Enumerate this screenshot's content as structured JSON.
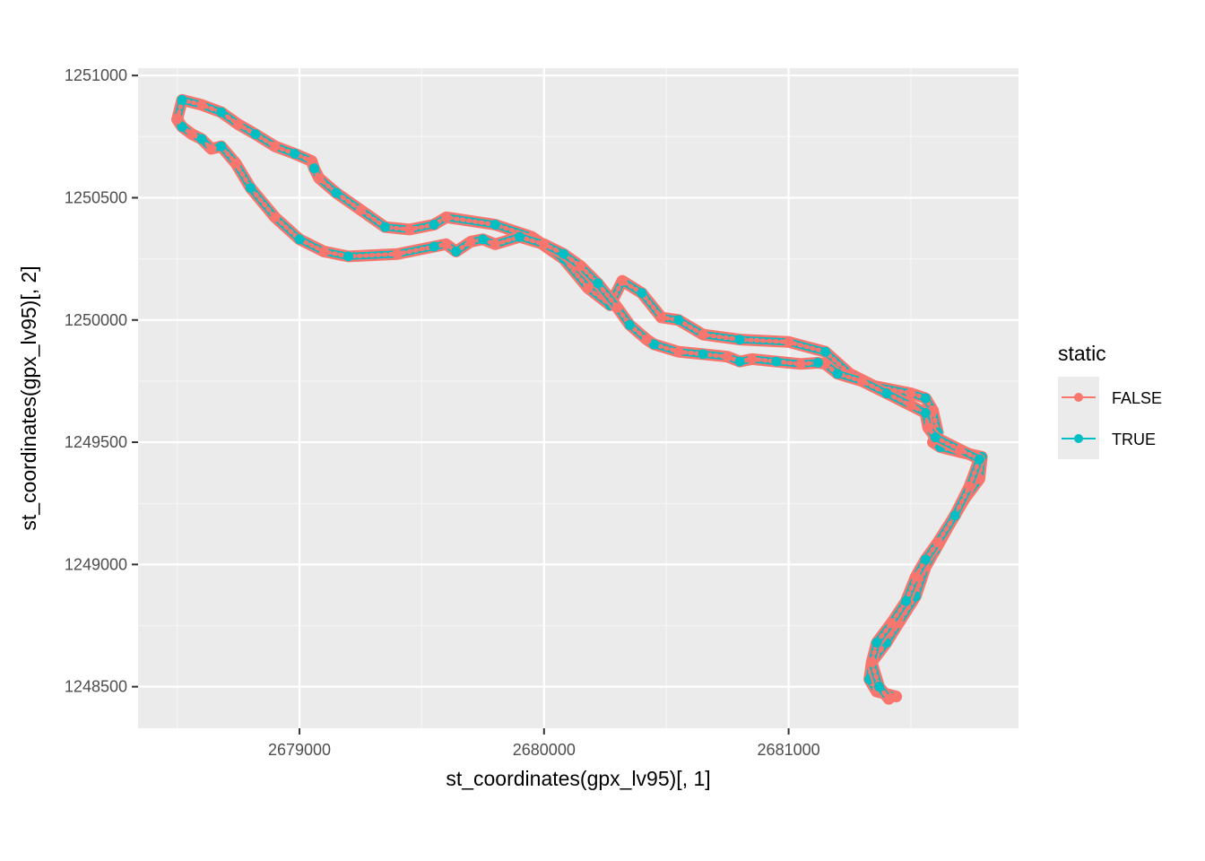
{
  "chart_data": {
    "type": "line",
    "xlabel": "st_coordinates(gpx_lv95)[, 1]",
    "ylabel": "st_coordinates(gpx_lv95)[, 2]",
    "xlim": [
      2678340,
      2681940
    ],
    "ylim": [
      1248330,
      1251030
    ],
    "x_ticks": [
      2679000,
      2680000,
      2681000
    ],
    "x_tick_labels": [
      "2679000",
      "2680000",
      "2681000"
    ],
    "y_ticks": [
      1248500,
      1249000,
      1249500,
      1250000,
      1250500,
      1251000
    ],
    "y_tick_labels": [
      "1248500",
      "1249000",
      "1249500",
      "1250000",
      "1250500",
      "1251000"
    ],
    "grid": true,
    "legend": {
      "title": "static",
      "position": "right"
    },
    "series": [
      {
        "name": "FALSE",
        "color": "#F8766D"
      },
      {
        "name": "TRUE",
        "color": "#00BFC4"
      }
    ],
    "route": {
      "x": [
        2678500,
        2678520,
        2678600,
        2678680,
        2678750,
        2678820,
        2678900,
        2678980,
        2679050,
        2679060,
        2679080,
        2679150,
        2679250,
        2679350,
        2679450,
        2679550,
        2679600,
        2679800,
        2679950,
        2680080,
        2680180,
        2680270,
        2680320,
        2680400,
        2680480,
        2680550,
        2680650,
        2680800,
        2681000,
        2681150,
        2681250,
        2681350,
        2681500,
        2681560,
        2681590,
        2681610,
        2681590,
        2681620,
        2681700,
        2681790,
        2681780,
        2681720,
        2681650,
        2681600,
        2681560,
        2681520,
        2681450,
        2681400,
        2681340,
        2681330,
        2681360,
        2681400,
        2681440
      ],
      "y": [
        1250820,
        1250900,
        1250880,
        1250850,
        1250800,
        1250760,
        1250710,
        1250680,
        1250650,
        1250620,
        1250580,
        1250520,
        1250450,
        1250380,
        1250370,
        1250390,
        1250420,
        1250390,
        1250340,
        1250250,
        1250130,
        1250060,
        1250160,
        1250110,
        1250010,
        1250000,
        1249940,
        1249920,
        1249910,
        1249870,
        1249780,
        1249730,
        1249700,
        1249680,
        1249630,
        1249540,
        1249500,
        1249480,
        1249460,
        1249440,
        1249350,
        1249270,
        1249150,
        1249060,
        1248990,
        1248870,
        1248760,
        1248680,
        1248600,
        1248530,
        1248480,
        1248470,
        1248460
      ]
    },
    "route_return": {
      "x": [
        2681410,
        2681370,
        2681340,
        2681360,
        2681420,
        2681480,
        2681520,
        2681560,
        2681610,
        2681680,
        2681740,
        2681780,
        2681700,
        2681600,
        2681570,
        2681560,
        2681500,
        2681400,
        2681300,
        2681200,
        2681150,
        2681120,
        2681050,
        2680950,
        2680850,
        2680800,
        2680750,
        2680650,
        2680550,
        2680450,
        2680420,
        2680350,
        2680300,
        2680220,
        2680150,
        2680080,
        2680000,
        2679900,
        2679800,
        2679750,
        2679700,
        2679640,
        2679600,
        2679550,
        2679400,
        2679200,
        2679100,
        2679000,
        2678900,
        2678800,
        2678740,
        2678680,
        2678640,
        2678600,
        2678560,
        2678520,
        2678500
      ],
      "y": [
        1248450,
        1248500,
        1248600,
        1248680,
        1248760,
        1248850,
        1248950,
        1249020,
        1249090,
        1249200,
        1249320,
        1249430,
        1249470,
        1249520,
        1249560,
        1249620,
        1249650,
        1249700,
        1249750,
        1249780,
        1249820,
        1249825,
        1249820,
        1249830,
        1249840,
        1249830,
        1249850,
        1249860,
        1249870,
        1249900,
        1249920,
        1249980,
        1250050,
        1250150,
        1250220,
        1250270,
        1250310,
        1250340,
        1250310,
        1250330,
        1250320,
        1250280,
        1250310,
        1250300,
        1250270,
        1250260,
        1250280,
        1250330,
        1250420,
        1250540,
        1250640,
        1250710,
        1250700,
        1250740,
        1250760,
        1250790,
        1250820
      ]
    }
  }
}
